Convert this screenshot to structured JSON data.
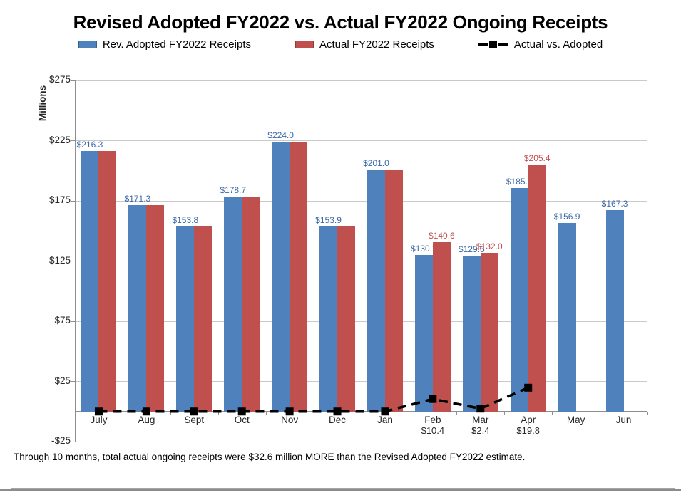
{
  "page": {
    "title": "Revised Adopted FY2022 vs. Actual FY2022 Ongoing Receipts",
    "footnote": "Through 10 months, total actual ongoing receipts were $32.6 million MORE than the Revised Adopted FY2022 estimate."
  },
  "legend": {
    "items": [
      {
        "label": "Rev. Adopted FY2022 Receipts",
        "type": "swatch",
        "color": "#4F81BD"
      },
      {
        "label": "Actual FY2022 Receipts",
        "type": "swatch",
        "color": "#C0504D"
      },
      {
        "label": "Actual vs. Adopted",
        "type": "line-marker",
        "color": "#000000"
      }
    ]
  },
  "colors": {
    "bar_blue": "#4F81BD",
    "bar_red": "#C0504D",
    "label_blue": "#3A68A8",
    "label_red": "#C0504D",
    "line_black": "#000000",
    "gridline": "#C9C9C9",
    "axis": "#8E8E8E"
  },
  "chart_data": {
    "type": "bar",
    "title": "Revised Adopted FY2022 vs. Actual FY2022 Ongoing Receipts",
    "xlabel": "",
    "ylabel": "Millions",
    "ylim": [
      -25,
      275
    ],
    "y_tick_step": 50,
    "grid": "horizontal",
    "legend_position": "top",
    "categories": [
      "July",
      "Aug",
      "Sept",
      "Oct",
      "Nov",
      "Dec",
      "Jan",
      "Feb",
      "Mar",
      "Apr",
      "May",
      "Jun"
    ],
    "category_sublabels": [
      null,
      null,
      null,
      null,
      null,
      null,
      null,
      "$10.4",
      "$2.4",
      "$19.8",
      null,
      null
    ],
    "y_ticks": [
      {
        "value": 275,
        "label": "$275"
      },
      {
        "value": 225,
        "label": "$225"
      },
      {
        "value": 175,
        "label": "$175"
      },
      {
        "value": 125,
        "label": "$125"
      },
      {
        "value": 75,
        "label": "$75"
      },
      {
        "value": 25,
        "label": "$25"
      },
      {
        "value": -25,
        "label": "-$25"
      }
    ],
    "series": [
      {
        "name": "Rev. Adopted FY2022 Receipts",
        "type": "bar",
        "color": "#4F81BD",
        "label_color": "#3A68A8",
        "values": [
          216.3,
          171.3,
          153.8,
          178.7,
          224.0,
          153.9,
          201.0,
          130.2,
          129.6,
          185.5,
          156.9,
          167.3
        ],
        "labels": [
          "$216.3",
          "$171.3",
          "$153.8",
          "$178.7",
          "$224.0",
          "$153.9",
          "$201.0",
          "$130.2",
          "$129.6",
          "$185.5",
          "$156.9",
          "$167.3"
        ]
      },
      {
        "name": "Actual FY2022 Receipts",
        "type": "bar",
        "color": "#C0504D",
        "label_color": "#C0504D",
        "values": [
          216.3,
          171.3,
          153.8,
          178.7,
          224.0,
          153.9,
          201.0,
          140.6,
          132.0,
          205.4,
          null,
          null
        ],
        "labels": [
          null,
          null,
          null,
          null,
          null,
          null,
          null,
          "$140.6",
          "$132.0",
          "$205.4",
          null,
          null
        ]
      },
      {
        "name": "Actual vs. Adopted",
        "type": "line",
        "color": "#000000",
        "marker": "square",
        "dashed": true,
        "values": [
          0,
          0,
          0,
          0,
          0,
          0,
          0,
          10.4,
          2.4,
          19.8,
          null,
          null
        ]
      }
    ]
  }
}
